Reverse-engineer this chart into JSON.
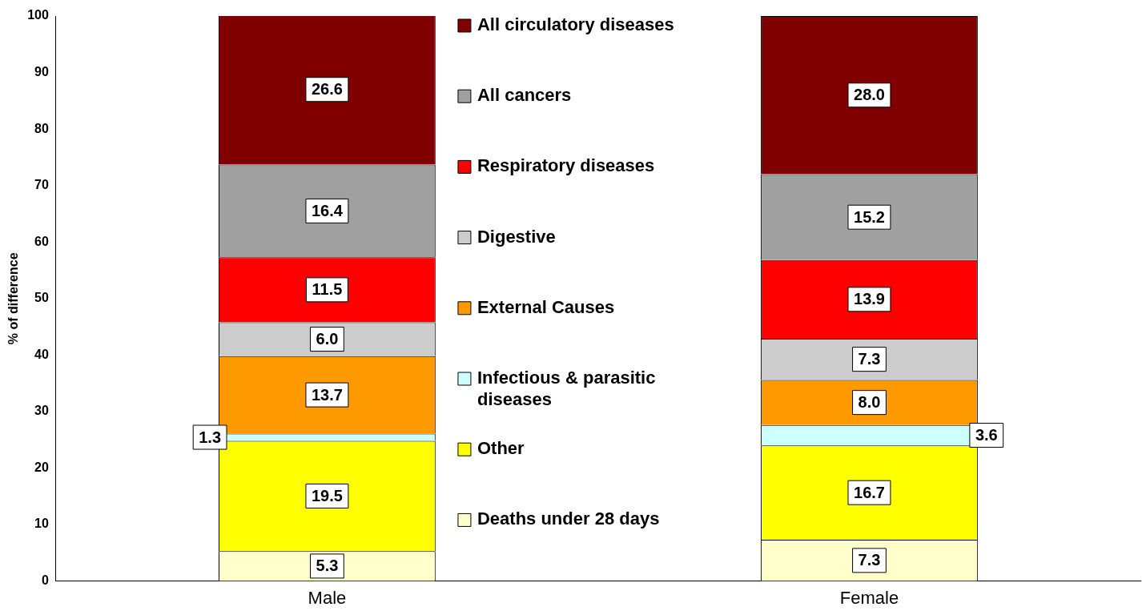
{
  "chart_data": {
    "type": "bar",
    "stacked": true,
    "ylabel": "% of difference",
    "categories": [
      "Male",
      "Female"
    ],
    "ylim": [
      0,
      100
    ],
    "yticks": [
      0,
      10,
      20,
      30,
      40,
      50,
      60,
      70,
      80,
      90,
      100
    ],
    "grid": false,
    "legend": "top",
    "series": [
      {
        "name": "Deaths under 28 days",
        "color": "#ffffcc",
        "values": [
          5.3,
          7.3
        ],
        "value_labels": [
          "5.3",
          "7.3"
        ]
      },
      {
        "name": "Other",
        "color": "#ffff00",
        "values": [
          19.5,
          16.7
        ],
        "value_labels": [
          "19.5",
          "16.7"
        ]
      },
      {
        "name": "Infectious & parasitic diseases",
        "color": "#ccffff",
        "values": [
          1.3,
          3.6
        ],
        "value_labels": [
          "1.3",
          "3.6"
        ]
      },
      {
        "name": "External Causes",
        "color": "#ff9900",
        "values": [
          13.7,
          8.0
        ],
        "value_labels": [
          "13.7",
          "8.0"
        ]
      },
      {
        "name": "Digestive",
        "color": "#cccccc",
        "values": [
          6.0,
          7.3
        ],
        "value_labels": [
          "6.0",
          "7.3"
        ]
      },
      {
        "name": "Respiratory diseases",
        "color": "#ff0000",
        "values": [
          11.5,
          13.9
        ],
        "value_labels": [
          "11.5",
          "13.9"
        ]
      },
      {
        "name": "All cancers",
        "color": "#a0a0a0",
        "values": [
          16.4,
          15.2
        ],
        "value_labels": [
          "16.4",
          "15.2"
        ]
      },
      {
        "name": "All circulatory diseases",
        "color": "#800000",
        "values": [
          26.6,
          28.0
        ],
        "value_labels": [
          "26.6",
          "28.0"
        ]
      }
    ]
  }
}
